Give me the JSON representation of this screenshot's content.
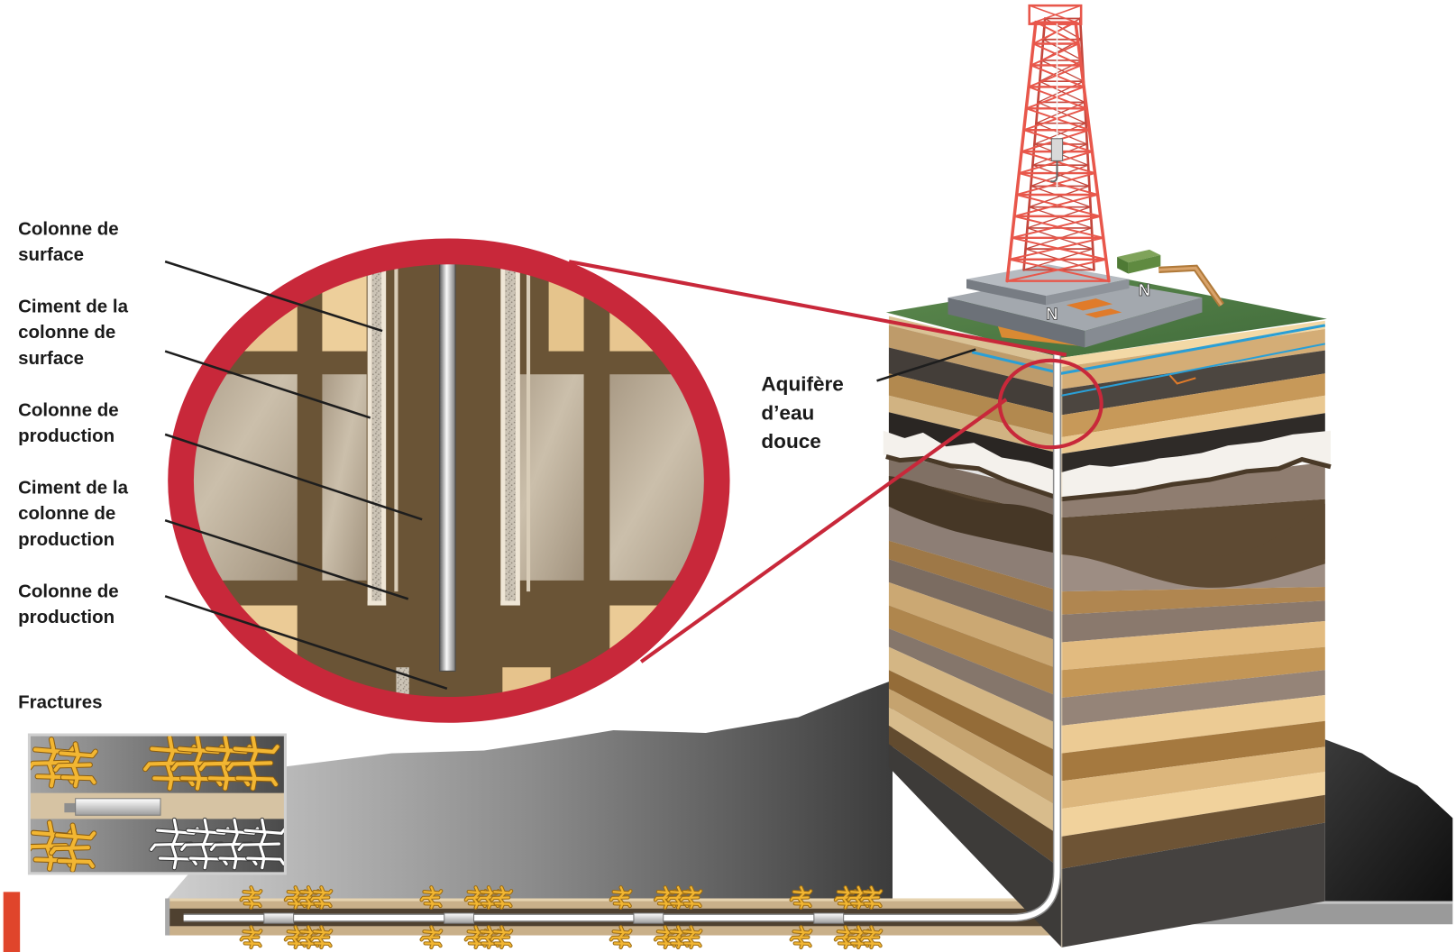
{
  "diagram": {
    "callouts": {
      "surface_casing": [
        "Colonne de",
        "surface"
      ],
      "surface_casing_cement": [
        "Ciment de la",
        "colonne de",
        "surface"
      ],
      "production_casing": [
        "Colonne de",
        "production"
      ],
      "production_casing_cement": [
        "Ciment de la",
        "colonne de",
        "production"
      ],
      "production_casing_lower": [
        "Colonne de",
        "production"
      ]
    },
    "fractures_label": "Fractures",
    "aquifer_label": [
      "Aquifère",
      "d’eau",
      "douce"
    ],
    "platform_markings": [
      "N",
      "N"
    ]
  },
  "colors": {
    "magnifier_ring": "#c8283a",
    "aquifer_line": "#2a9fd6",
    "derrick": "#e8574b",
    "fracture": "#f2b632",
    "accent_bar": "#e0452b"
  }
}
